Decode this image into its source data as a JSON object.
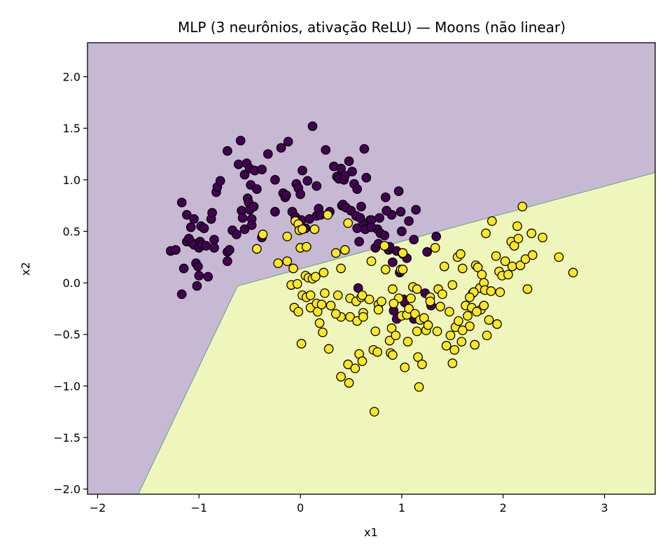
{
  "chart_data": {
    "type": "scatter",
    "title": "MLP (3 neurônios, ativação ReLU) — Moons (não linear)",
    "xlabel": "x1",
    "ylabel": "x2",
    "xlim": [
      -2.1,
      3.5
    ],
    "ylim": [
      -2.05,
      2.33
    ],
    "xticks": [
      -2,
      -1,
      0,
      1,
      2,
      3
    ],
    "yticks": [
      -2.0,
      -1.5,
      -1.0,
      -0.5,
      0.0,
      0.5,
      1.0,
      1.5,
      2.0
    ],
    "ytick_labels": [
      "−2.0",
      "−1.5",
      "−1.0",
      "−0.5",
      "0.0",
      "0.5",
      "1.0",
      "1.5",
      "2.0"
    ],
    "xtick_labels": [
      "−2",
      "−1",
      "0",
      "1",
      "2",
      "3"
    ],
    "grid": false,
    "decision_regions": {
      "class_0_color": "#c7b9d3",
      "class_1_color": "#eff6bb",
      "boundary": [
        [
          -1.6,
          -2.05
        ],
        [
          -0.62,
          -0.03
        ],
        [
          3.5,
          1.07
        ]
      ]
    },
    "series": [
      {
        "class": 0,
        "color": "#440154",
        "points": [
          [
            -1.28,
            0.31
          ],
          [
            -1.23,
            0.32
          ],
          [
            -1.17,
            0.78
          ],
          [
            -1.17,
            -0.11
          ],
          [
            -1.15,
            0.14
          ],
          [
            -1.12,
            0.66
          ],
          [
            -1.12,
            0.4
          ],
          [
            -1.1,
            0.43
          ],
          [
            -1.08,
            0.54
          ],
          [
            -1.07,
            0.39
          ],
          [
            -1.05,
            0.37
          ],
          [
            -1.05,
            0.62
          ],
          [
            -1.03,
            0.19
          ],
          [
            -1.02,
            -0.03
          ],
          [
            -1.01,
            0.16
          ],
          [
            -1.0,
            0.07
          ],
          [
            -1.0,
            0.34
          ],
          [
            -0.99,
            0.4
          ],
          [
            -0.98,
            0.55
          ],
          [
            -0.97,
            0.37
          ],
          [
            -0.95,
            0.53
          ],
          [
            -0.93,
            0.36
          ],
          [
            -0.91,
            0.06
          ],
          [
            -0.88,
            0.62
          ],
          [
            -0.87,
            0.68
          ],
          [
            -0.85,
            0.42
          ],
          [
            -0.85,
            0.34
          ],
          [
            -0.83,
            0.88
          ],
          [
            -0.82,
            0.93
          ],
          [
            -0.79,
            0.99
          ],
          [
            -0.72,
            1.28
          ],
          [
            -0.72,
            0.3
          ],
          [
            -0.72,
            0.21
          ],
          [
            -0.7,
            0.32
          ],
          [
            -0.67,
            0.51
          ],
          [
            -0.63,
            0.47
          ],
          [
            -0.61,
            1.15
          ],
          [
            -0.59,
            1.38
          ],
          [
            -0.58,
            0.7
          ],
          [
            -0.57,
            0.63
          ],
          [
            -0.55,
            0.52
          ],
          [
            -0.55,
            1.05
          ],
          [
            -0.53,
            1.16
          ],
          [
            -0.52,
            0.82
          ],
          [
            -0.51,
            0.78
          ],
          [
            -0.5,
            1.11
          ],
          [
            -0.5,
            0.71
          ],
          [
            -0.49,
            0.95
          ],
          [
            -0.48,
            0.62
          ],
          [
            -0.48,
            0.56
          ],
          [
            -0.46,
            0.74
          ],
          [
            -0.45,
            1.09
          ],
          [
            -0.43,
            0.91
          ],
          [
            -0.38,
            1.1
          ],
          [
            -0.38,
            0.44
          ],
          [
            -0.32,
            1.25
          ],
          [
            -0.25,
            1.0
          ],
          [
            -0.25,
            0.69
          ],
          [
            -0.19,
            1.31
          ],
          [
            -0.17,
            0.87
          ],
          [
            -0.15,
            0.83
          ],
          [
            -0.14,
            0.85
          ],
          [
            -0.12,
            1.37
          ],
          [
            -0.08,
            0.69
          ],
          [
            -0.05,
            0.64
          ],
          [
            -0.04,
            0.96
          ],
          [
            -0.02,
            0.92
          ],
          [
            0.0,
            0.86
          ],
          [
            0.01,
            0.61
          ],
          [
            0.02,
            1.09
          ],
          [
            0.05,
            0.53
          ],
          [
            0.07,
            0.99
          ],
          [
            0.09,
            0.62
          ],
          [
            0.12,
            1.52
          ],
          [
            0.16,
            0.94
          ],
          [
            0.16,
            0.65
          ],
          [
            0.18,
            0.72
          ],
          [
            0.2,
            0.66
          ],
          [
            0.25,
            1.29
          ],
          [
            0.29,
            0.69
          ],
          [
            0.33,
            1.13
          ],
          [
            0.36,
            1.03
          ],
          [
            0.38,
            1.01
          ],
          [
            0.4,
            1.11
          ],
          [
            0.41,
            0.75
          ],
          [
            0.42,
            0.76
          ],
          [
            0.43,
            1.0
          ],
          [
            0.44,
            1.04
          ],
          [
            0.45,
            0.73
          ],
          [
            0.48,
            1.18
          ],
          [
            0.5,
            0.7
          ],
          [
            0.51,
            1.08
          ],
          [
            0.53,
            0.96
          ],
          [
            0.55,
            0.65
          ],
          [
            0.56,
            0.91
          ],
          [
            0.56,
            0.53
          ],
          [
            0.58,
            0.4
          ],
          [
            0.6,
            0.74
          ],
          [
            0.62,
            0.58
          ],
          [
            0.64,
            0.52
          ],
          [
            0.65,
            1.02
          ],
          [
            0.69,
            0.61
          ],
          [
            0.7,
            0.61
          ],
          [
            0.74,
            0.34
          ],
          [
            0.76,
            0.52
          ],
          [
            0.77,
            0.38
          ],
          [
            0.78,
            0.63
          ],
          [
            0.79,
            0.48
          ],
          [
            0.83,
            0.46
          ],
          [
            0.84,
            0.83
          ],
          [
            0.87,
            0.32
          ],
          [
            0.88,
            0.35
          ],
          [
            0.9,
            0.66
          ],
          [
            0.91,
            0.2
          ],
          [
            0.92,
            -0.27
          ],
          [
            0.95,
            0.31
          ],
          [
            0.98,
            0.1
          ],
          [
            0.99,
            0.69
          ],
          [
            1.0,
            0.5
          ],
          [
            1.01,
            0.28
          ],
          [
            1.02,
            -0.16
          ],
          [
            1.03,
            -0.19
          ],
          [
            1.05,
            0.24
          ],
          [
            1.07,
            0.6
          ],
          [
            1.12,
            0.42
          ],
          [
            1.14,
            0.71
          ],
          [
            1.23,
            -0.1
          ],
          [
            1.25,
            0.3
          ],
          [
            1.29,
            -0.22
          ],
          [
            1.34,
            0.45
          ],
          [
            0.63,
            1.3
          ],
          [
            0.57,
            -0.05
          ],
          [
            0.95,
            -0.35
          ],
          [
            0.59,
            0.63
          ],
          [
            0.7,
            0.54
          ],
          [
            0.97,
            0.89
          ],
          [
            0.85,
            0.7
          ],
          [
            1.12,
            -0.35
          ]
        ]
      },
      {
        "class": 1,
        "color": "#fde725",
        "points": [
          [
            -0.43,
            0.33
          ],
          [
            -0.37,
            0.47
          ],
          [
            -0.22,
            0.19
          ],
          [
            -0.13,
            0.45
          ],
          [
            -0.13,
            0.21
          ],
          [
            -0.09,
            -0.02
          ],
          [
            -0.07,
            0.14
          ],
          [
            -0.06,
            -0.24
          ],
          [
            -0.05,
            0.6
          ],
          [
            -0.03,
            -0.01
          ],
          [
            -0.02,
            0.57
          ],
          [
            -0.02,
            -0.28
          ],
          [
            -0.01,
            0.51
          ],
          [
            0.0,
            0.34
          ],
          [
            0.01,
            -0.59
          ],
          [
            0.02,
            0.52
          ],
          [
            0.02,
            -0.12
          ],
          [
            0.05,
            0.07
          ],
          [
            0.06,
            -0.14
          ],
          [
            0.06,
            0.35
          ],
          [
            0.08,
            0.05
          ],
          [
            0.1,
            -0.24
          ],
          [
            0.12,
            0.04
          ],
          [
            0.15,
            0.06
          ],
          [
            0.16,
            -0.2
          ],
          [
            0.17,
            -0.28
          ],
          [
            0.19,
            -0.39
          ],
          [
            0.21,
            -0.21
          ],
          [
            0.22,
            -0.48
          ],
          [
            0.23,
            0.1
          ],
          [
            0.24,
            -0.1
          ],
          [
            0.27,
            0.66
          ],
          [
            0.28,
            -0.64
          ],
          [
            0.3,
            -0.22
          ],
          [
            0.35,
            0.29
          ],
          [
            0.37,
            -0.12
          ],
          [
            0.4,
            0.14
          ],
          [
            0.4,
            -0.91
          ],
          [
            0.4,
            -0.33
          ],
          [
            0.44,
            0.32
          ],
          [
            0.47,
            0.58
          ],
          [
            0.47,
            -0.79
          ],
          [
            0.48,
            -0.97
          ],
          [
            0.49,
            -0.15
          ],
          [
            0.49,
            -0.33
          ],
          [
            0.54,
            -0.83
          ],
          [
            0.55,
            -0.18
          ],
          [
            0.56,
            -0.37
          ],
          [
            0.58,
            -0.69
          ],
          [
            0.6,
            -0.14
          ],
          [
            0.61,
            -0.76
          ],
          [
            0.62,
            -0.29
          ],
          [
            0.7,
            0.21
          ],
          [
            0.72,
            -0.65
          ],
          [
            0.73,
            -1.25
          ],
          [
            0.74,
            -0.47
          ],
          [
            0.76,
            -0.67
          ],
          [
            0.77,
            -0.21
          ],
          [
            0.77,
            -0.26
          ],
          [
            0.8,
            -0.18
          ],
          [
            0.83,
            0.36
          ],
          [
            0.84,
            0.13
          ],
          [
            0.88,
            -0.56
          ],
          [
            0.89,
            -0.68
          ],
          [
            0.9,
            -0.44
          ],
          [
            0.91,
            -0.7
          ],
          [
            0.94,
            -0.51
          ],
          [
            0.97,
            -0.15
          ],
          [
            0.99,
            0.13
          ],
          [
            1.0,
            -0.32
          ],
          [
            1.01,
            0.29
          ],
          [
            1.01,
            0.13
          ],
          [
            1.03,
            -0.82
          ],
          [
            1.05,
            -0.31
          ],
          [
            1.06,
            -0.57
          ],
          [
            1.07,
            -0.25
          ],
          [
            1.09,
            -0.15
          ],
          [
            1.11,
            -0.04
          ],
          [
            1.13,
            -0.3
          ],
          [
            1.15,
            -0.47
          ],
          [
            1.15,
            -0.06
          ],
          [
            1.16,
            -0.72
          ],
          [
            1.17,
            -1.01
          ],
          [
            1.18,
            -0.36
          ],
          [
            1.2,
            -0.79
          ],
          [
            1.22,
            -0.34
          ],
          [
            1.24,
            -0.46
          ],
          [
            1.26,
            -0.41
          ],
          [
            1.28,
            -0.14
          ],
          [
            1.28,
            -0.18
          ],
          [
            1.33,
            0.34
          ],
          [
            1.36,
            -0.06
          ],
          [
            1.38,
            -0.23
          ],
          [
            1.4,
            -0.11
          ],
          [
            1.42,
            0.16
          ],
          [
            1.44,
            -0.61
          ],
          [
            1.47,
            -0.28
          ],
          [
            1.48,
            -0.51
          ],
          [
            1.5,
            -0.78
          ],
          [
            1.5,
            -0.02
          ],
          [
            1.52,
            -0.65
          ],
          [
            1.53,
            -0.43
          ],
          [
            1.55,
            0.25
          ],
          [
            1.56,
            -0.37
          ],
          [
            1.58,
            0.28
          ],
          [
            1.59,
            -0.57
          ],
          [
            1.6,
            0.14
          ],
          [
            1.63,
            -0.22
          ],
          [
            1.65,
            -0.32
          ],
          [
            1.67,
            -0.42
          ],
          [
            1.69,
            -0.24
          ],
          [
            1.7,
            -0.1
          ],
          [
            1.72,
            -0.6
          ],
          [
            1.73,
            0.17
          ],
          [
            1.75,
            0.15
          ],
          [
            1.77,
            -0.05
          ],
          [
            1.78,
            -0.26
          ],
          [
            1.79,
            0.08
          ],
          [
            1.81,
            -0.22
          ],
          [
            1.81,
            0.0
          ],
          [
            1.82,
            -0.07
          ],
          [
            1.83,
            0.48
          ],
          [
            1.84,
            -0.51
          ],
          [
            1.86,
            -0.36
          ],
          [
            1.89,
            0.6
          ],
          [
            1.93,
            0.26
          ],
          [
            1.94,
            -0.4
          ],
          [
            1.96,
            0.11
          ],
          [
            1.97,
            -0.09
          ],
          [
            1.99,
            0.07
          ],
          [
            2.02,
            0.21
          ],
          [
            2.05,
            0.08
          ],
          [
            2.08,
            0.4
          ],
          [
            2.09,
            0.16
          ],
          [
            2.11,
            0.36
          ],
          [
            2.14,
            0.55
          ],
          [
            2.15,
            0.43
          ],
          [
            2.17,
            0.17
          ],
          [
            2.19,
            0.74
          ],
          [
            2.22,
            0.23
          ],
          [
            2.24,
            -0.06
          ],
          [
            2.28,
            0.48
          ],
          [
            2.29,
            0.27
          ],
          [
            2.39,
            0.44
          ],
          [
            2.55,
            0.25
          ],
          [
            2.69,
            0.1
          ],
          [
            1.74,
            -0.28
          ],
          [
            1.71,
            -0.09
          ],
          [
            1.67,
            -0.14
          ],
          [
            0.68,
            -0.16
          ],
          [
            1.6,
            -0.46
          ],
          [
            0.1,
            -0.12
          ],
          [
            0.35,
            -0.3
          ],
          [
            0.61,
            -0.12
          ],
          [
            1.35,
            -0.47
          ],
          [
            0.92,
            -0.2
          ],
          [
            0.14,
            0.52
          ],
          [
            0.62,
            -0.33
          ],
          [
            1.88,
            -0.08
          ],
          [
            0.91,
            -0.06
          ]
        ]
      }
    ]
  }
}
